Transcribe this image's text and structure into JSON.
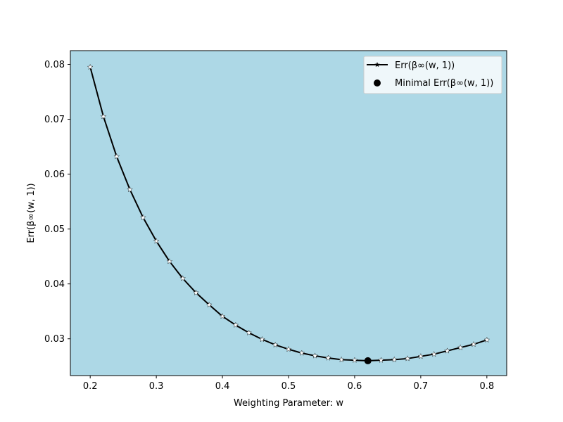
{
  "chart_data": {
    "type": "line",
    "title": "",
    "xlabel": "Weighting Parameter: w",
    "ylabel": "Err(β∞(w, 1))",
    "xlim": [
      0.17,
      0.83
    ],
    "ylim": [
      0.0233,
      0.0825
    ],
    "x_ticks": [
      0.2,
      0.3,
      0.4,
      0.5,
      0.6,
      0.7,
      0.8
    ],
    "x_tick_labels": [
      "0.2",
      "0.3",
      "0.4",
      "0.5",
      "0.6",
      "0.7",
      "0.8"
    ],
    "y_ticks": [
      0.03,
      0.04,
      0.05,
      0.06,
      0.07,
      0.08
    ],
    "y_tick_labels": [
      "0.03",
      "0.04",
      "0.05",
      "0.06",
      "0.07",
      "0.08"
    ],
    "grid": false,
    "legend_position": "top-right",
    "background_color": "#add8e6",
    "series": [
      {
        "name": "Err(β∞(w, 1))",
        "color": "#000000",
        "marker": "star",
        "marker_color": "#ffffff",
        "x": [
          0.2,
          0.22,
          0.24,
          0.26,
          0.28,
          0.3,
          0.32,
          0.34,
          0.36,
          0.38,
          0.4,
          0.42,
          0.44,
          0.46,
          0.48,
          0.5,
          0.52,
          0.54,
          0.56,
          0.58,
          0.6,
          0.62,
          0.64,
          0.66,
          0.68,
          0.7,
          0.72,
          0.74,
          0.76,
          0.78,
          0.8
        ],
        "y": [
          0.0795,
          0.0705,
          0.0632,
          0.0572,
          0.0521,
          0.0478,
          0.0441,
          0.041,
          0.0384,
          0.0362,
          0.0341,
          0.0325,
          0.0311,
          0.0299,
          0.0289,
          0.0281,
          0.0274,
          0.0269,
          0.0265,
          0.0262,
          0.0261,
          0.026,
          0.0261,
          0.0262,
          0.0264,
          0.0268,
          0.0272,
          0.0278,
          0.0284,
          0.029,
          0.0298
        ]
      }
    ],
    "highlight_point": {
      "name": "Minimal Err(β∞(w, 1))",
      "x": 0.62,
      "y": 0.026,
      "color": "#000000"
    }
  }
}
